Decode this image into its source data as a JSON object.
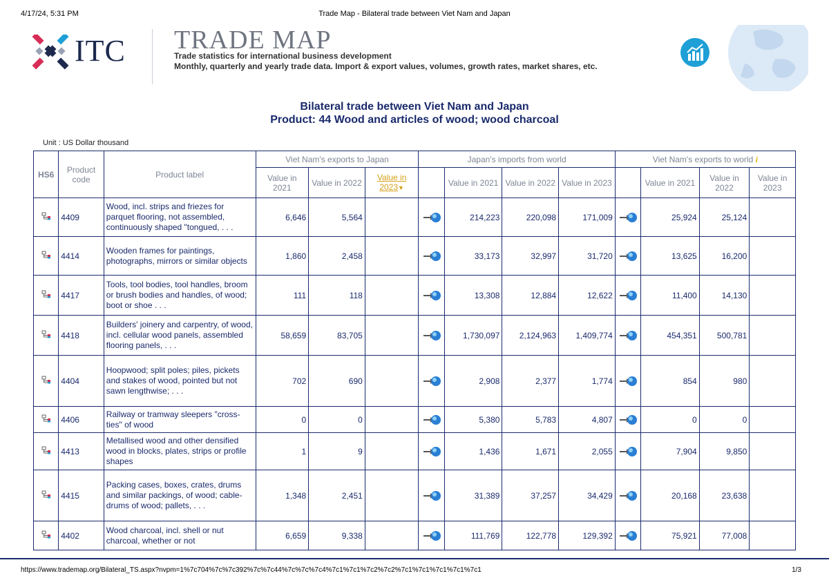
{
  "print": {
    "date": "4/17/24, 5:31 PM",
    "title": "Trade Map - Bilateral trade between Viet Nam and Japan",
    "url": "https://www.trademap.org/Bilateral_TS.aspx?nvpm=1%7c704%7c%7c392%7c%7c44%7c%7c%7c4%7c1%7c1%7c2%7c2%7c1%7c1%7c1%7c1%7c1",
    "page": "1/3"
  },
  "banner": {
    "itc": "ITC",
    "title": "TRADE MAP",
    "subtitle1": "Trade statistics for international business development",
    "subtitle2": "Monthly, quarterly and yearly trade data. Import & export values, volumes, growth rates, market shares, etc."
  },
  "report": {
    "title": "Bilateral trade between Viet Nam and Japan",
    "product": "Product: 44 Wood and articles of wood; wood charcoal",
    "unit": "Unit : US Dollar thousand"
  },
  "table": {
    "h_hs6": "HS6",
    "h_code": "Product code",
    "h_label": "Product label",
    "g1": "Viet Nam's exports to Japan",
    "g2": "Japan's imports from world",
    "g3": "Viet Nam's exports to world",
    "y2021": "Value in 2021",
    "y2022": "Value in 2022",
    "y2023": "Value in 2023",
    "rows": [
      {
        "code": "4409",
        "label": "Wood, incl. strips and friezes for parquet flooring, not assembled, continuously shaped \"tongued, . . .",
        "a21": "6,646",
        "a22": "5,564",
        "a23": "",
        "b21": "214,223",
        "b22": "220,098",
        "b23": "171,009",
        "c21": "25,924",
        "c22": "25,124",
        "c23": ""
      },
      {
        "code": "4414",
        "label": "Wooden frames for paintings, photographs, mirrors or similar objects",
        "a21": "1,860",
        "a22": "2,458",
        "a23": "",
        "b21": "33,173",
        "b22": "32,997",
        "b23": "31,720",
        "c21": "13,625",
        "c22": "16,200",
        "c23": ""
      },
      {
        "code": "4417",
        "label": "Tools, tool bodies, tool handles, broom or brush bodies and handles, of wood; boot or shoe . . .",
        "a21": "111",
        "a22": "118",
        "a23": "",
        "b21": "13,308",
        "b22": "12,884",
        "b23": "12,622",
        "c21": "11,400",
        "c22": "14,130",
        "c23": ""
      },
      {
        "code": "4418",
        "label": "Builders' joinery and carpentry, of wood, incl. cellular wood panels, assembled flooring panels, . . .",
        "a21": "58,659",
        "a22": "83,705",
        "a23": "",
        "b21": "1,730,097",
        "b22": "2,124,963",
        "b23": "1,409,774",
        "c21": "454,351",
        "c22": "500,781",
        "c23": ""
      },
      {
        "code": "4404",
        "label": "Hoopwood; split poles; piles, pickets and stakes of wood, pointed but not sawn lengthwise; . . .",
        "a21": "702",
        "a22": "690",
        "a23": "",
        "b21": "2,908",
        "b22": "2,377",
        "b23": "1,774",
        "c21": "854",
        "c22": "980",
        "c23": ""
      },
      {
        "code": "4406",
        "label": "Railway or tramway sleepers \"cross-ties\" of wood",
        "a21": "0",
        "a22": "0",
        "a23": "",
        "b21": "5,380",
        "b22": "5,783",
        "b23": "4,807",
        "c21": "0",
        "c22": "0",
        "c23": ""
      },
      {
        "code": "4413",
        "label": "Metallised wood and other densified wood in blocks, plates, strips or profile shapes",
        "a21": "1",
        "a22": "9",
        "a23": "",
        "b21": "1,436",
        "b22": "1,671",
        "b23": "2,055",
        "c21": "7,904",
        "c22": "9,850",
        "c23": ""
      },
      {
        "code": "4415",
        "label": "Packing cases, boxes, crates, drums and similar packings, of wood; cable-drums of wood; pallets, . . .",
        "a21": "1,348",
        "a22": "2,451",
        "a23": "",
        "b21": "31,389",
        "b22": "37,257",
        "b23": "34,429",
        "c21": "20,168",
        "c22": "23,638",
        "c23": ""
      },
      {
        "code": "4402",
        "label": "Wood charcoal, incl. shell or nut charcoal, whether or not",
        "a21": "6,659",
        "a22": "9,338",
        "a23": "",
        "b21": "111,769",
        "b22": "122,778",
        "b23": "129,392",
        "c21": "75,921",
        "c22": "77,008",
        "c23": ""
      }
    ]
  },
  "colors": {
    "navy": "#1a2a6c",
    "gold": "#d4a017",
    "header_gray": "#7d8595"
  },
  "icons": {
    "hs6": "tree-icon",
    "mirror": "mirror-arrow-globe-icon",
    "sort": "sort-down-icon",
    "info": "info-icon"
  }
}
